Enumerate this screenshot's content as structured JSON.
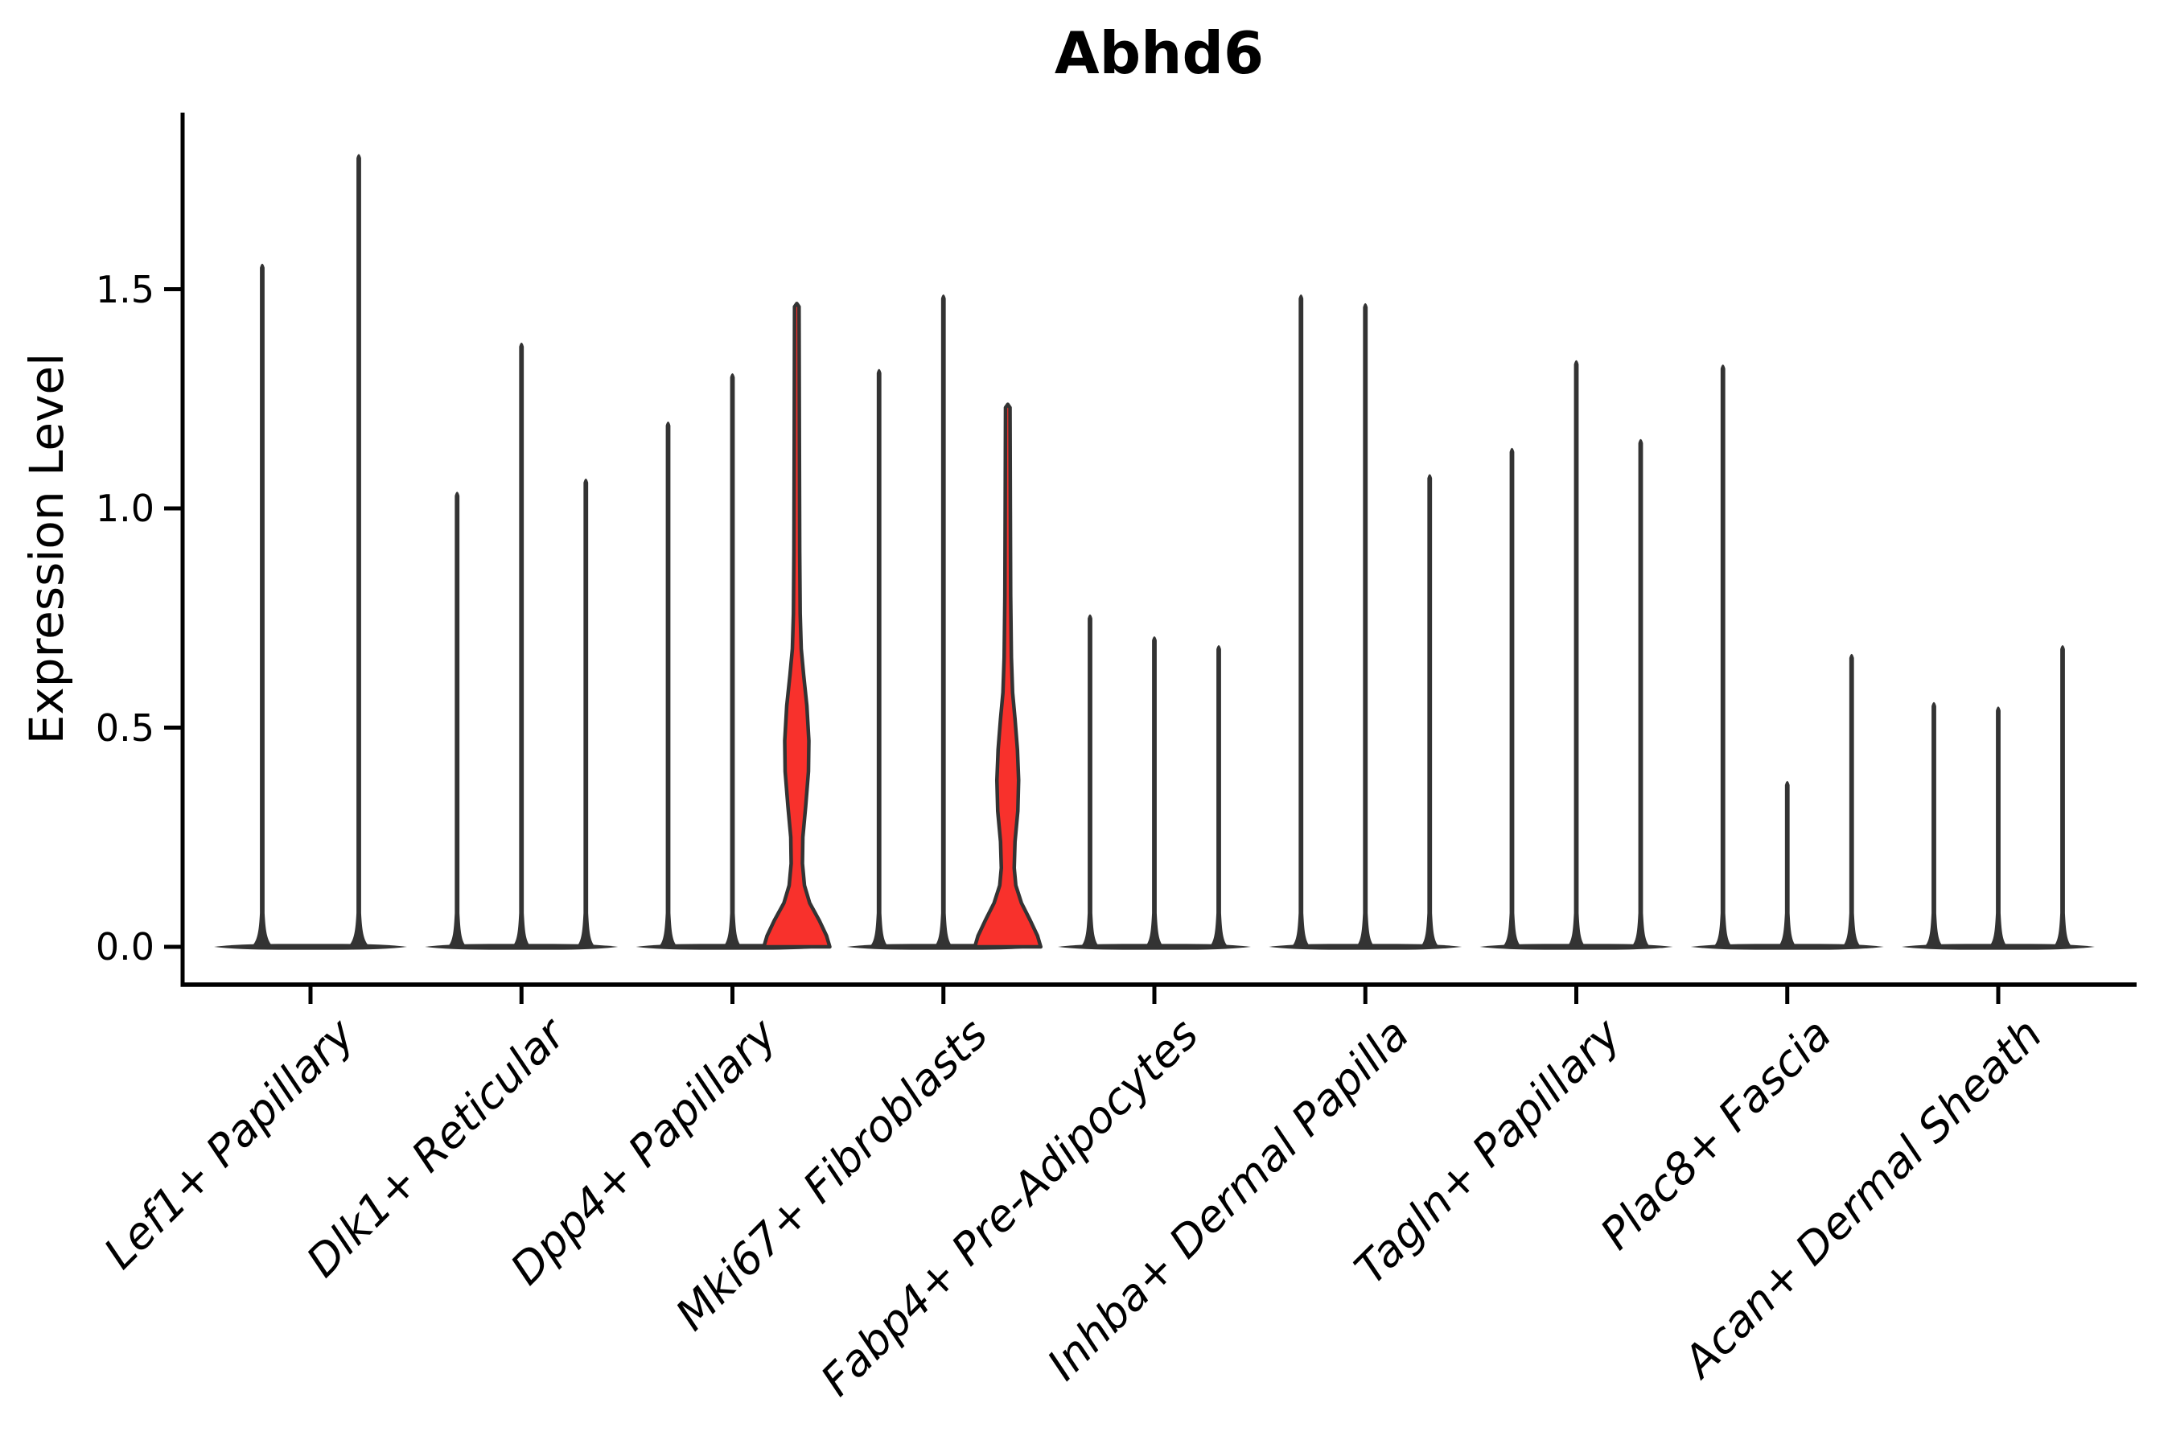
{
  "chart_data": {
    "type": "violin",
    "title": "Abhd6",
    "ylabel": "Expression Level",
    "xlabel": "",
    "yticks": [
      0.0,
      0.5,
      1.0,
      1.5
    ],
    "ylim": [
      -0.09,
      1.9
    ],
    "grid": false,
    "legend": "none",
    "x_tick_rotation": 45,
    "categories": [
      "Lef1+ Papillary",
      "Dlk1+ Reticular",
      "Dpp4+ Papillary",
      "Mki67+ Fibroblasts",
      "Fabp4+ Pre-Adipocytes",
      "Inhba+ Dermal Papilla",
      "Tagln+ Papillary",
      "Plac8+ Fascia",
      "Acan+ Dermal Sheath"
    ],
    "groups": [
      {
        "category": "Lef1+ Papillary",
        "violins": [
          {
            "max": 1.56
          },
          {
            "max": 1.81
          }
        ]
      },
      {
        "category": "Dlk1+ Reticular",
        "violins": [
          {
            "max": 1.04
          },
          {
            "max": 1.38
          },
          {
            "max": 1.07
          }
        ]
      },
      {
        "category": "Dpp4+ Papillary",
        "violins": [
          {
            "max": 1.2
          },
          {
            "max": 1.31
          },
          {
            "max": 1.46,
            "highlight": true,
            "profile": [
              [
                0.0,
                41
              ],
              [
                0.025,
                37
              ],
              [
                0.06,
                28
              ],
              [
                0.1,
                16
              ],
              [
                0.14,
                9.5
              ],
              [
                0.19,
                7
              ],
              [
                0.25,
                7.5
              ],
              [
                0.32,
                11
              ],
              [
                0.4,
                14.5
              ],
              [
                0.47,
                15
              ],
              [
                0.55,
                12.5
              ],
              [
                0.62,
                8.5
              ],
              [
                0.68,
                5.5
              ],
              [
                0.76,
                4.2
              ],
              [
                0.9,
                3.6
              ],
              [
                1.15,
                3.2
              ],
              [
                1.46,
                2.8
              ]
            ]
          }
        ]
      },
      {
        "category": "Mki67+ Fibroblasts",
        "violins": [
          {
            "max": 1.32
          },
          {
            "max": 1.49
          },
          {
            "max": 1.23,
            "highlight": true,
            "profile": [
              [
                0.0,
                41
              ],
              [
                0.025,
                37
              ],
              [
                0.06,
                28
              ],
              [
                0.1,
                17
              ],
              [
                0.14,
                10
              ],
              [
                0.18,
                8
              ],
              [
                0.24,
                9
              ],
              [
                0.31,
                12.5
              ],
              [
                0.38,
                13.5
              ],
              [
                0.45,
                12
              ],
              [
                0.52,
                9
              ],
              [
                0.58,
                6
              ],
              [
                0.66,
                4.5
              ],
              [
                0.8,
                3.6
              ],
              [
                1.0,
                3.2
              ],
              [
                1.23,
                2.8
              ]
            ]
          }
        ]
      },
      {
        "category": "Fabp4+ Pre-Adipocytes",
        "violins": [
          {
            "max": 0.76
          },
          {
            "max": 0.71
          },
          {
            "max": 0.69
          }
        ]
      },
      {
        "category": "Inhba+ Dermal Papilla",
        "violins": [
          {
            "max": 1.49
          },
          {
            "max": 1.47
          },
          {
            "max": 1.08
          }
        ]
      },
      {
        "category": "Tagln+ Papillary",
        "violins": [
          {
            "max": 1.14
          },
          {
            "max": 1.34
          },
          {
            "max": 1.16
          }
        ]
      },
      {
        "category": "Plac8+ Fascia",
        "violins": [
          {
            "max": 1.33
          },
          {
            "max": 0.38
          },
          {
            "max": 0.67
          }
        ]
      },
      {
        "category": "Acan+ Dermal Sheath",
        "violins": [
          {
            "max": 0.56
          },
          {
            "max": 0.55
          },
          {
            "max": 0.69
          }
        ]
      }
    ],
    "colors": {
      "violin_line": "#333333",
      "highlight_fill": "#f8312c",
      "axis": "#000000",
      "background": "#ffffff"
    }
  }
}
